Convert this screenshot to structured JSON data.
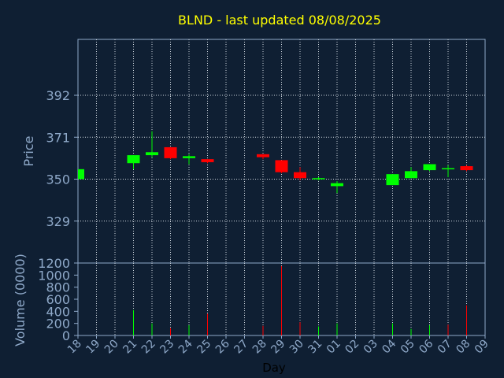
{
  "title": "BLND - last updated 08/08/2025",
  "colors": {
    "background": "#0f1f33",
    "axis": "#8fa9c9",
    "grid": "#d0d8e0",
    "title": "#ffff00",
    "up": "#00ff00",
    "down": "#ff0000"
  },
  "chart_data": [
    {
      "type": "candlestick",
      "title": "BLND - last updated 08/08/2025",
      "ylabel": "Price",
      "ylim": [
        308,
        420
      ],
      "yticks": [
        329,
        350,
        371,
        392
      ],
      "grid": true,
      "candles": [
        {
          "day": "18",
          "open": 350,
          "close": 355,
          "high": 355,
          "low": 350
        },
        {
          "day": "21",
          "open": 358,
          "close": 362,
          "high": 362,
          "low": 355
        },
        {
          "day": "22",
          "open": 362,
          "close": 363.5,
          "high": 374,
          "low": 361
        },
        {
          "day": "23",
          "open": 366,
          "close": 360.5,
          "high": 366,
          "low": 360
        },
        {
          "day": "24",
          "open": 360.5,
          "close": 361.5,
          "high": 362.5,
          "low": 357.5
        },
        {
          "day": "25",
          "open": 360,
          "close": 358.5,
          "high": 360,
          "low": 358
        },
        {
          "day": "28",
          "open": 362.5,
          "close": 361,
          "high": 362.5,
          "low": 360
        },
        {
          "day": "29",
          "open": 359.5,
          "close": 353.5,
          "high": 359.5,
          "low": 353
        },
        {
          "day": "30",
          "open": 353.5,
          "close": 350.5,
          "high": 356,
          "low": 349.5
        },
        {
          "day": "31",
          "open": 350,
          "close": 350.5,
          "high": 351,
          "low": 349.5
        },
        {
          "day": "01",
          "open": 346.5,
          "close": 348,
          "high": 349,
          "low": 343
        },
        {
          "day": "04",
          "open": 347,
          "close": 352.5,
          "high": 352.5,
          "low": 347
        },
        {
          "day": "05",
          "open": 350.5,
          "close": 354,
          "high": 356,
          "low": 350.5
        },
        {
          "day": "06",
          "open": 354.5,
          "close": 357.5,
          "high": 357.5,
          "low": 354
        },
        {
          "day": "07",
          "open": 355.5,
          "close": 355.5,
          "high": 357,
          "low": 351
        },
        {
          "day": "08",
          "open": 356.5,
          "close": 354.5,
          "high": 357,
          "low": 354
        }
      ]
    },
    {
      "type": "bar",
      "ylabel": "Volume (0000)",
      "xlabel": "Day",
      "ylim": [
        0,
        1200
      ],
      "yticks": [
        0,
        200,
        400,
        600,
        800,
        1000,
        1200
      ],
      "categories": [
        "18",
        "19",
        "20",
        "21",
        "22",
        "23",
        "24",
        "25",
        "26",
        "27",
        "28",
        "29",
        "30",
        "31",
        "01",
        "02",
        "03",
        "04",
        "05",
        "06",
        "07",
        "08",
        "09"
      ],
      "values": [
        0,
        0,
        0,
        420,
        200,
        120,
        170,
        360,
        0,
        0,
        160,
        1150,
        220,
        150,
        200,
        0,
        0,
        200,
        110,
        170,
        180,
        500,
        0
      ],
      "direction": [
        "up",
        "",
        "",
        "up",
        "up",
        "down",
        "up",
        "down",
        "",
        "",
        "down",
        "down",
        "down",
        "up",
        "up",
        "",
        "",
        "up",
        "up",
        "up",
        "down",
        "down",
        ""
      ]
    }
  ]
}
